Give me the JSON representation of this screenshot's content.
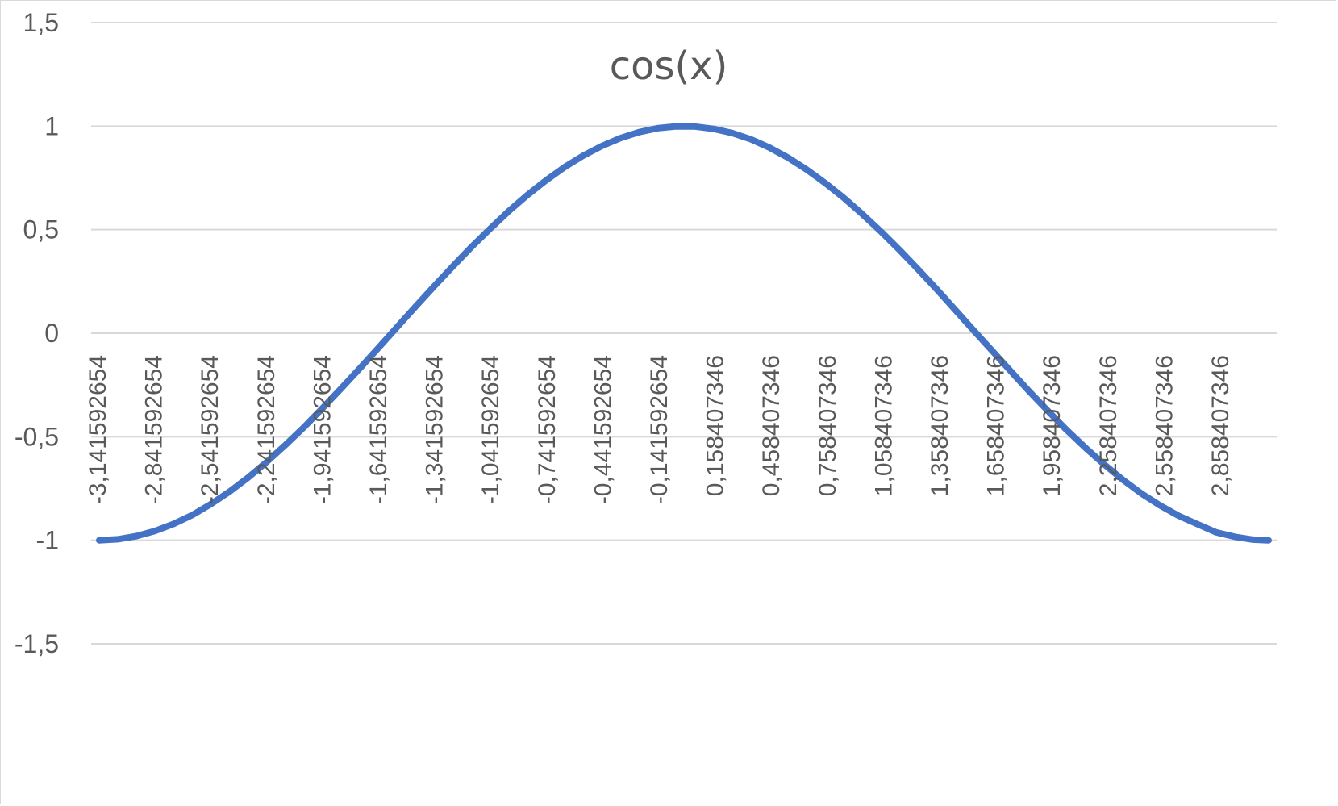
{
  "chart_data": {
    "type": "line",
    "title": "cos(x)",
    "xlabel": "",
    "ylabel": "",
    "ylim": [
      -1.5,
      1.5
    ],
    "yticks": [
      "1,5",
      "1",
      "0,5",
      "0",
      "-0,5",
      "-1",
      "-1,5"
    ],
    "ytick_values": [
      1.5,
      1,
      0.5,
      0,
      -0.5,
      -1,
      -1.5
    ],
    "grid": true,
    "legend": "none",
    "x_tick_labels": [
      "-3,141592654",
      "-2,841592654",
      "-2,541592654",
      "-2,241592654",
      "-1,941592654",
      "-1,641592654",
      "-1,341592654",
      "-1,041592654",
      "-0,741592654",
      "-0,441592654",
      "-0,141592654",
      "0,158407346",
      "0,458407346",
      "0,758407346",
      "1,058407346",
      "1,358407346",
      "1,658407346",
      "1,958407346",
      "2,258407346",
      "2,558407346",
      "2,858407346"
    ],
    "series": [
      {
        "color": "#4472c4",
        "x": [
          -3.141592654,
          -3.041592654,
          -2.941592654,
          -2.841592654,
          -2.741592654,
          -2.641592654,
          -2.541592654,
          -2.441592654,
          -2.341592654,
          -2.241592654,
          -2.141592654,
          -2.041592654,
          -1.941592654,
          -1.841592654,
          -1.741592654,
          -1.641592654,
          -1.541592654,
          -1.441592654,
          -1.341592654,
          -1.241592654,
          -1.141592654,
          -1.041592654,
          -0.941592654,
          -0.841592654,
          -0.741592654,
          -0.641592654,
          -0.541592654,
          -0.441592654,
          -0.341592654,
          -0.241592654,
          -0.141592654,
          -0.041592654,
          0.058407346,
          0.158407346,
          0.258407346,
          0.358407346,
          0.458407346,
          0.558407346,
          0.658407346,
          0.758407346,
          0.858407346,
          0.958407346,
          1.058407346,
          1.158407346,
          1.258407346,
          1.358407346,
          1.458407346,
          1.558407346,
          1.658407346,
          1.758407346,
          1.858407346,
          1.958407346,
          2.058407346,
          2.158407346,
          2.258407346,
          2.358407346,
          2.458407346,
          2.558407346,
          2.658407346,
          2.758407346,
          2.858407346,
          2.958407346,
          3.058407346,
          3.141592654
        ],
        "values": [
          -1.0,
          -0.995,
          -0.98,
          -0.955,
          -0.921,
          -0.878,
          -0.825,
          -0.765,
          -0.697,
          -0.622,
          -0.54,
          -0.454,
          -0.362,
          -0.267,
          -0.17,
          -0.071,
          0.029,
          0.129,
          0.227,
          0.323,
          0.416,
          0.504,
          0.589,
          0.667,
          0.738,
          0.802,
          0.857,
          0.904,
          0.942,
          0.971,
          0.99,
          0.999,
          0.998,
          0.987,
          0.967,
          0.937,
          0.897,
          0.848,
          0.791,
          0.726,
          0.654,
          0.575,
          0.491,
          0.402,
          0.308,
          0.212,
          0.112,
          0.012,
          -0.087,
          -0.186,
          -0.284,
          -0.378,
          -0.469,
          -0.554,
          -0.634,
          -0.708,
          -0.774,
          -0.832,
          -0.882,
          -0.922,
          -0.961,
          -0.983,
          -0.997,
          -1.0
        ]
      }
    ]
  }
}
